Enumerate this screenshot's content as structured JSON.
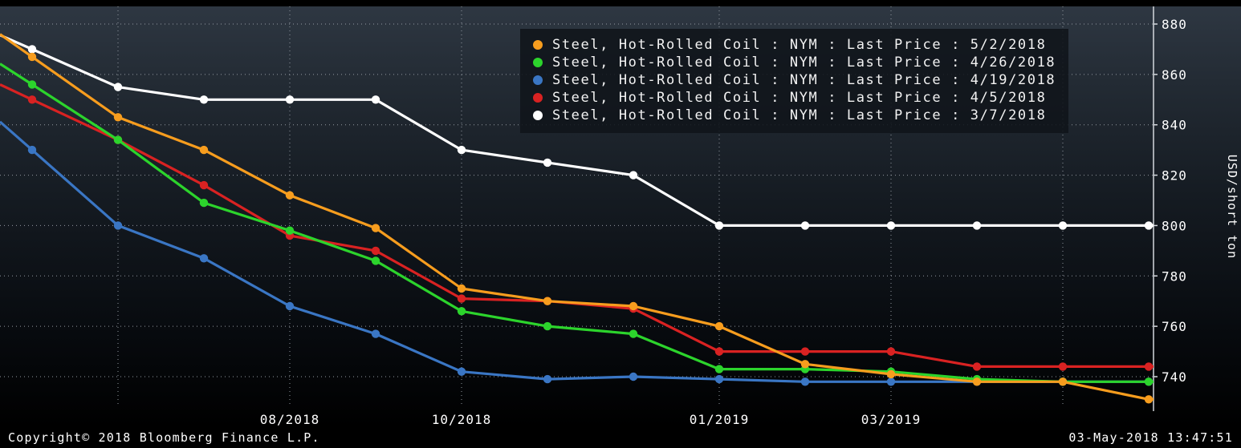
{
  "chart_data": {
    "type": "line",
    "title": "",
    "xlabel": "",
    "ylabel": "USD/short ton",
    "grid": true,
    "legend_position": "top",
    "ylim": [
      728,
      885
    ],
    "y_ticks": [
      880,
      860,
      840,
      820,
      800,
      780,
      760,
      740
    ],
    "categories": [
      "05/2018",
      "06/2018",
      "07/2018",
      "08/2018",
      "09/2018",
      "10/2018",
      "11/2018",
      "12/2018",
      "01/2019",
      "02/2019",
      "03/2019",
      "04/2019",
      "05/2019",
      "06/2019"
    ],
    "x_tick_labels": [
      {
        "index": 3,
        "label": "08/2018"
      },
      {
        "index": 5,
        "label": "10/2018"
      },
      {
        "index": 8,
        "label": "01/2019"
      },
      {
        "index": 10,
        "label": "03/2019"
      }
    ],
    "grid_x_indices": [
      1,
      3,
      5,
      8,
      10,
      12
    ],
    "series": [
      {
        "name": "Steel, Hot-Rolled Coil : NYM : Last Price : 5/2/2018",
        "color": "#f79d1e",
        "values": [
          867,
          843,
          830,
          812,
          799,
          775,
          770,
          768,
          760,
          745,
          741,
          738,
          738,
          731
        ]
      },
      {
        "name": "Steel, Hot-Rolled Coil : NYM : Last Price : 4/26/2018",
        "color": "#2cd42c",
        "values": [
          856,
          834,
          809,
          798,
          786,
          766,
          760,
          757,
          743,
          743,
          742,
          739,
          738,
          738
        ]
      },
      {
        "name": "Steel, Hot-Rolled Coil : NYM : Last Price : 4/19/2018",
        "color": "#3a76c4",
        "values": [
          830,
          800,
          787,
          768,
          757,
          742,
          739,
          740,
          739,
          738,
          738,
          738,
          738,
          738
        ]
      },
      {
        "name": "Steel, Hot-Rolled Coil : NYM : Last Price : 4/5/2018",
        "color": "#d92222",
        "values": [
          850,
          834,
          816,
          796,
          790,
          771,
          770,
          767,
          750,
          750,
          750,
          744,
          744,
          744
        ]
      },
      {
        "name": "Steel, Hot-Rolled Coil : NYM : Last Price : 3/7/2018",
        "color": "#ffffff",
        "values": [
          870,
          855,
          850,
          850,
          850,
          830,
          825,
          820,
          800,
          800,
          800,
          800,
          800,
          800
        ]
      }
    ]
  },
  "footer": {
    "copyright": "Copyright© 2018 Bloomberg Finance L.P.",
    "timestamp": "03-May-2018 13:47:51"
  }
}
